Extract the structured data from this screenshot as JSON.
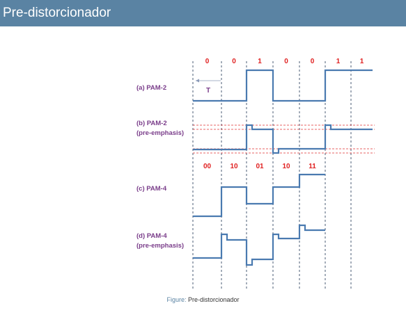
{
  "header": {
    "title": "Pre-distorcionador"
  },
  "figure": {
    "labels": {
      "a_line1": "(a) PAM-2",
      "b_line1": "(b) PAM-2",
      "b_line2": "(pre-emphasis)",
      "c_line1": "(c) PAM-4",
      "d_line1": "(d) PAM-4",
      "d_line2": "(pre-emphasis)",
      "period": "T"
    },
    "bits_pam2": [
      "0",
      "0",
      "1",
      "0",
      "0",
      "1",
      "1"
    ],
    "symbols_pam4": [
      "00",
      "10",
      "01",
      "10",
      "11"
    ],
    "colors": {
      "waveform": "#4a7ab0",
      "bits": "#e02020",
      "labels": "#7a3d8a",
      "guide": "#5a6a80",
      "threshold": "#e03030"
    }
  },
  "caption": {
    "label": "Figure:",
    "text": "Pre-distorcionador"
  }
}
